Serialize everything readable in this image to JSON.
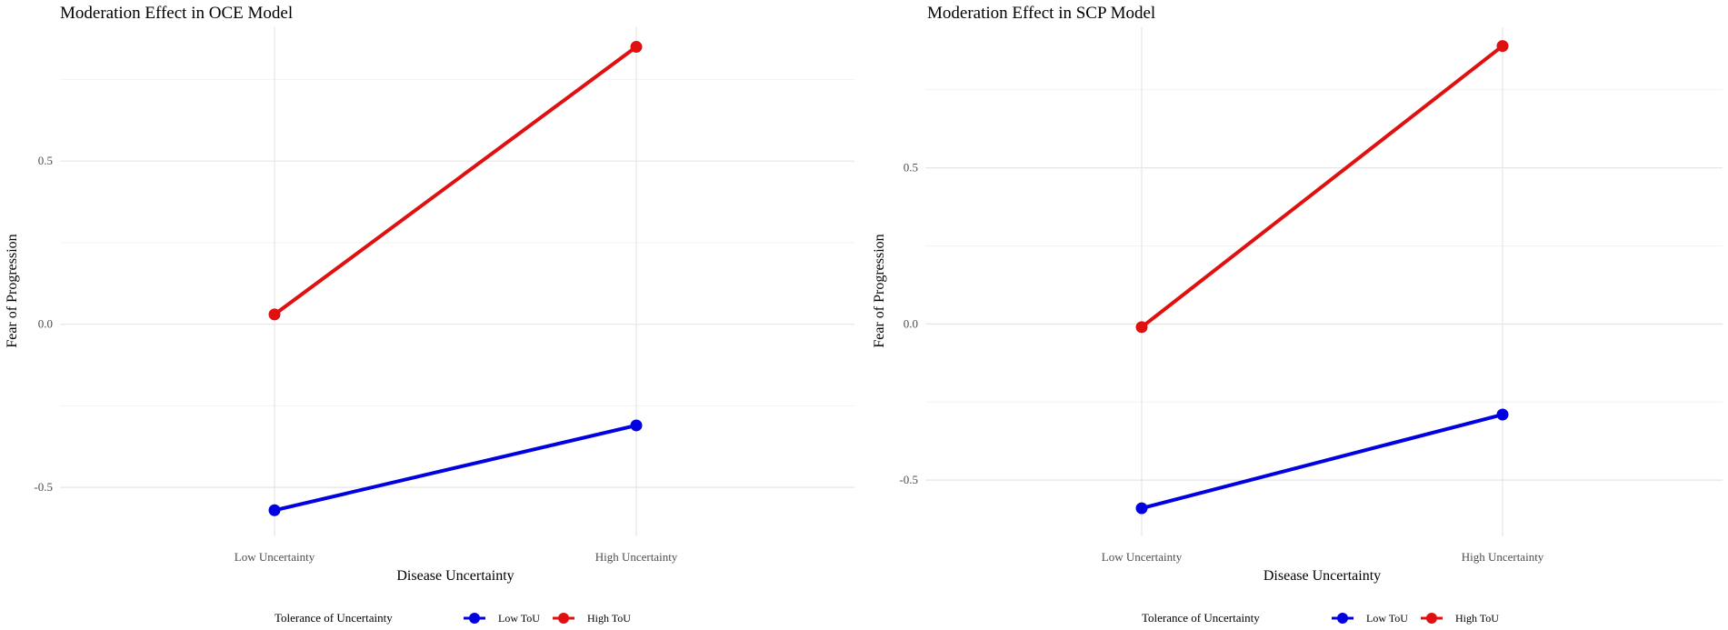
{
  "chart_data": [
    {
      "type": "line",
      "title": "Moderation Effect in OCE Model",
      "xlabel": "Disease Uncertainty",
      "ylabel": "Fear of Progression",
      "categories": [
        "Low Uncertainty",
        "High Uncertainty"
      ],
      "ylim": [
        -0.65,
        0.91
      ],
      "yticks": [
        -0.5,
        0.0,
        0.5
      ],
      "ytick_labels": [
        "-0.5",
        "0.0",
        "0.5"
      ],
      "grid": true,
      "series": [
        {
          "name": "Low ToU",
          "color": "#0000e0",
          "values": [
            -0.57,
            -0.31
          ]
        },
        {
          "name": "High ToU",
          "color": "#e01010",
          "values": [
            0.03,
            0.85
          ]
        }
      ],
      "legend": {
        "title": "Tolerance of Uncertainty",
        "position": "bottom"
      }
    },
    {
      "type": "line",
      "title": "Moderation Effect in SCP Model",
      "xlabel": "Disease Uncertainty",
      "ylabel": "Fear of Progression",
      "categories": [
        "Low Uncertainty",
        "High Uncertainty"
      ],
      "ylim": [
        -0.68,
        0.95
      ],
      "yticks": [
        -0.5,
        0.0,
        0.5
      ],
      "ytick_labels": [
        "-0.5",
        "0.0",
        "0.5"
      ],
      "grid": true,
      "series": [
        {
          "name": "Low ToU",
          "color": "#0000e0",
          "values": [
            -0.59,
            -0.29
          ]
        },
        {
          "name": "High ToU",
          "color": "#e01010",
          "values": [
            -0.01,
            0.89
          ]
        }
      ],
      "legend": {
        "title": "Tolerance of Uncertainty",
        "position": "bottom"
      }
    }
  ]
}
